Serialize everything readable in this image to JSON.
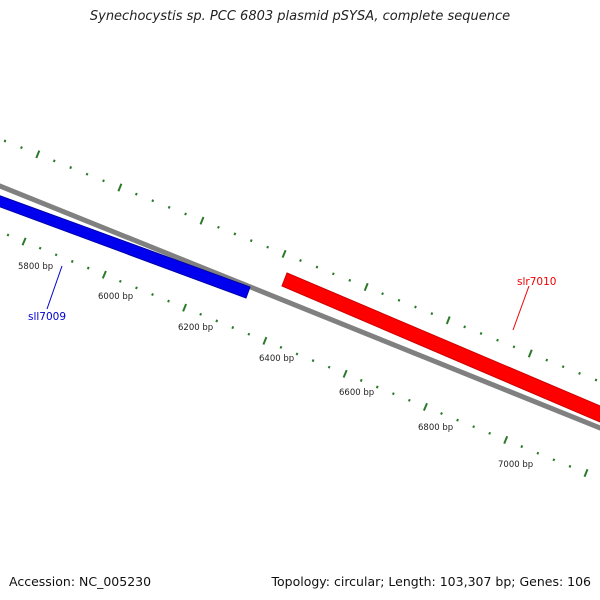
{
  "title": "Synechocystis sp. PCC 6803 plasmid pSYSA, complete sequence",
  "footer": {
    "accession": "Accession: NC_005230",
    "summary": "Topology: circular; Length: 103,307 bp; Genes: 106"
  },
  "ticks": {
    "major_color": "#2a7a2a",
    "labels": [
      "5800 bp",
      "6000 bp",
      "6200 bp",
      "6400 bp",
      "6600 bp",
      "6800 bp",
      "7000 bp"
    ]
  },
  "backbone": {
    "color": "#808080"
  },
  "genes": [
    {
      "name": "sll7009",
      "strand": "reverse",
      "color": "#0000ee",
      "label_color": "#0000cc"
    },
    {
      "name": "slr7010",
      "strand": "forward",
      "color": "#ff0000",
      "label_color": "#ee0000"
    }
  ]
}
